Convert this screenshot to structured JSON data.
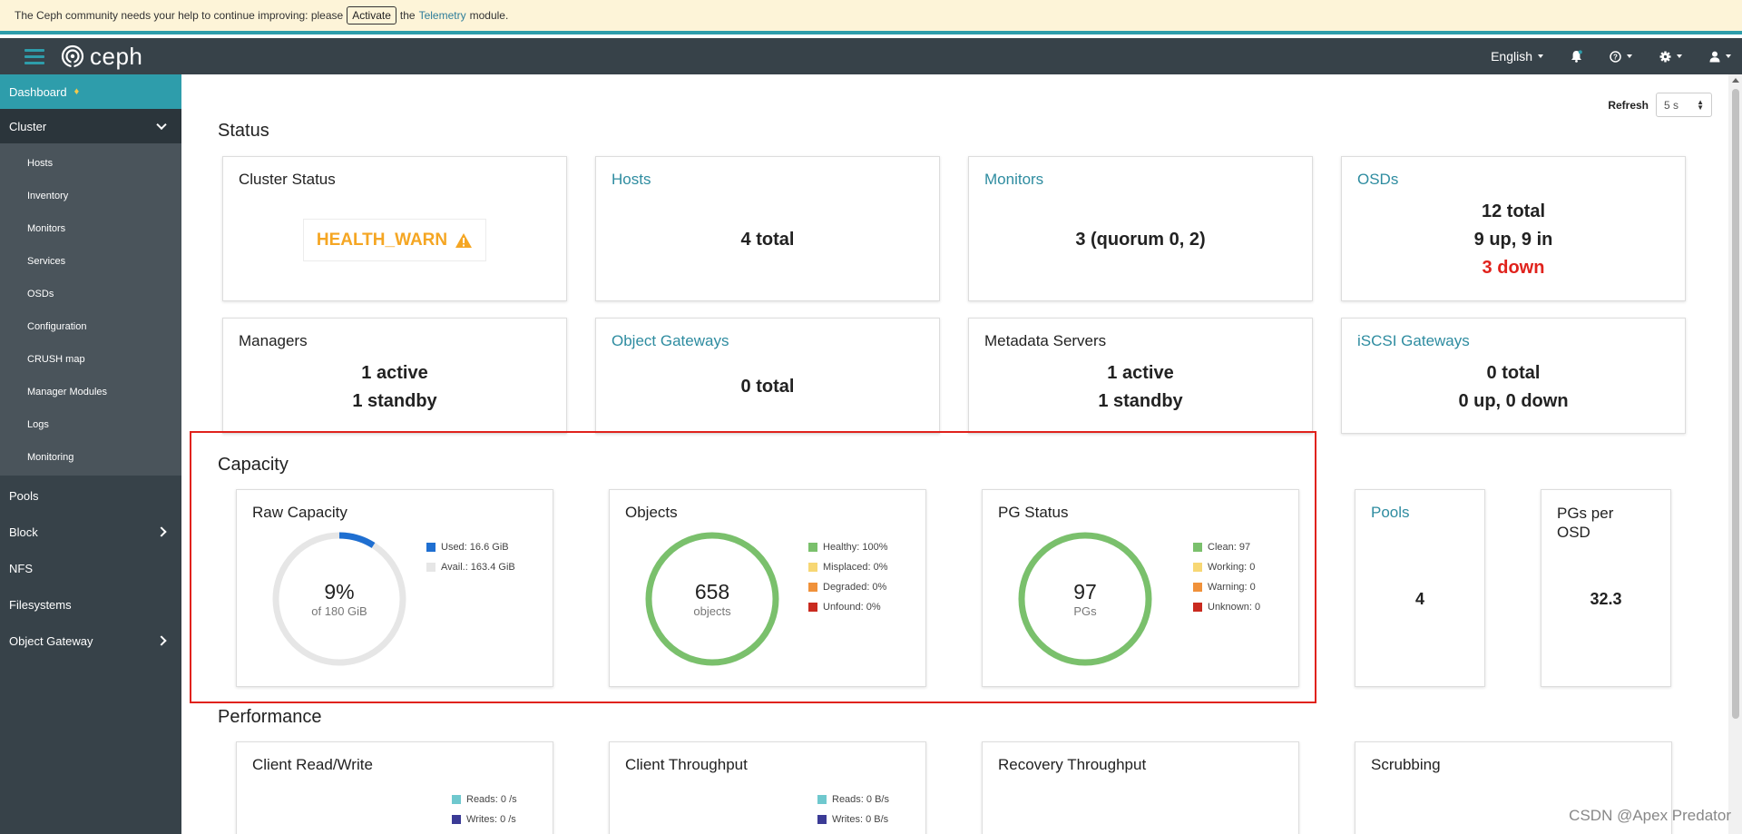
{
  "banner": {
    "text_before": "The Ceph community needs your help to continue improving: please",
    "activate_label": "Activate",
    "text_the": "the",
    "link_label": "Telemetry",
    "text_after": "module."
  },
  "navbar": {
    "brand": "ceph",
    "language": "English"
  },
  "sidebar": {
    "dashboard": "Dashboard",
    "cluster": "Cluster",
    "cluster_items": [
      "Hosts",
      "Inventory",
      "Monitors",
      "Services",
      "OSDs",
      "Configuration",
      "CRUSH map",
      "Manager Modules",
      "Logs",
      "Monitoring"
    ],
    "pools": "Pools",
    "block": "Block",
    "nfs": "NFS",
    "filesystems": "Filesystems",
    "object_gateway": "Object Gateway"
  },
  "refresh": {
    "label": "Refresh",
    "value": "5 s"
  },
  "status": {
    "title": "Status",
    "cluster_status": {
      "title": "Cluster Status",
      "health": "HEALTH_WARN"
    },
    "hosts": {
      "title": "Hosts",
      "value": "4 total"
    },
    "monitors": {
      "title": "Monitors",
      "value": "3 (quorum 0, 2)"
    },
    "osds": {
      "title": "OSDs",
      "total": "12 total",
      "up_in": "9 up, 9 in",
      "down": "3 down"
    },
    "managers": {
      "title": "Managers",
      "active": "1 active",
      "standby": "1 standby"
    },
    "object_gateways": {
      "title": "Object Gateways",
      "value": "0 total"
    },
    "metadata_servers": {
      "title": "Metadata Servers",
      "active": "1 active",
      "standby": "1 standby"
    },
    "iscsi_gateways": {
      "title": "iSCSI Gateways",
      "total": "0 total",
      "updown": "0 up, 0 down"
    }
  },
  "capacity": {
    "title": "Capacity",
    "raw_capacity": {
      "title": "Raw Capacity",
      "percent_label": "9%",
      "sub_label": "of 180 GiB",
      "used_fraction": 0.09,
      "legend": [
        "Used: 16.6 GiB",
        "Avail.: 163.4 GiB"
      ]
    },
    "objects": {
      "title": "Objects",
      "value": "658",
      "unit": "objects",
      "legend": [
        "Healthy: 100%",
        "Misplaced: 0%",
        "Degraded: 0%",
        "Unfound: 0%"
      ]
    },
    "pg_status": {
      "title": "PG Status",
      "value": "97",
      "unit": "PGs",
      "legend": [
        "Clean: 97",
        "Working: 0",
        "Warning: 0",
        "Unknown: 0"
      ]
    },
    "pools": {
      "title": "Pools",
      "value": "4"
    },
    "pgs_per_osd": {
      "title": "PGs per OSD",
      "value": "32.3"
    }
  },
  "performance": {
    "title": "Performance",
    "client_rw": {
      "title": "Client Read/Write",
      "legend": [
        "Reads: 0 /s",
        "Writes: 0 /s"
      ]
    },
    "client_throughput": {
      "title": "Client Throughput",
      "legend": [
        "Reads: 0 B/s",
        "Writes: 0 B/s"
      ]
    },
    "recovery_throughput": {
      "title": "Recovery Throughput"
    },
    "scrubbing": {
      "title": "Scrubbing"
    }
  },
  "colors": {
    "accent": "#2e9dab",
    "used": "#1f6fd1",
    "avail": "#e6e6e6",
    "healthy": "#7ac06c",
    "misplaced": "#f7d774",
    "degraded": "#f0913a",
    "unfound": "#c92a1f",
    "reads": "#6fc8ce",
    "writes": "#3b3b96",
    "warn": "#f5a623",
    "down": "#e0221c"
  },
  "watermark": "CSDN @Apex   Predator"
}
